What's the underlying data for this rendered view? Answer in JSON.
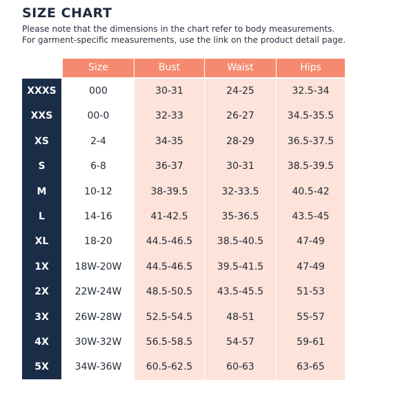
{
  "title": "SIZE CHART",
  "note_line1": "Please note that the dimensions in the chart refer to body measurements.",
  "note_line2": "For garment-specific measurements, use the link on the product detail page.",
  "colors": {
    "header": "#f58a70",
    "side": "#1b2c47",
    "shade": "#fde3da"
  },
  "headers": [
    "Size",
    "Bust",
    "Waist",
    "Hips"
  ],
  "rows": [
    {
      "label": "XXXS",
      "size": "000",
      "bust": "30-31",
      "waist": "24-25",
      "hips": "32.5-34"
    },
    {
      "label": "XXS",
      "size": "00-0",
      "bust": "32-33",
      "waist": "26-27",
      "hips": "34.5-35.5"
    },
    {
      "label": "XS",
      "size": "2-4",
      "bust": "34-35",
      "waist": "28-29",
      "hips": "36.5-37.5"
    },
    {
      "label": "S",
      "size": "6-8",
      "bust": "36-37",
      "waist": "30-31",
      "hips": "38.5-39.5"
    },
    {
      "label": "M",
      "size": "10-12",
      "bust": "38-39.5",
      "waist": "32-33.5",
      "hips": "40.5-42"
    },
    {
      "label": "L",
      "size": "14-16",
      "bust": "41-42.5",
      "waist": "35-36.5",
      "hips": "43.5-45"
    },
    {
      "label": "XL",
      "size": "18-20",
      "bust": "44.5-46.5",
      "waist": "38.5-40.5",
      "hips": "47-49"
    },
    {
      "label": "1X",
      "size": "18W-20W",
      "bust": "44.5-46.5",
      "waist": "39.5-41.5",
      "hips": "47-49"
    },
    {
      "label": "2X",
      "size": "22W-24W",
      "bust": "48.5-50.5",
      "waist": "43.5-45.5",
      "hips": "51-53"
    },
    {
      "label": "3X",
      "size": "26W-28W",
      "bust": "52.5-54.5",
      "waist": "48-51",
      "hips": "55-57"
    },
    {
      "label": "4X",
      "size": "30W-32W",
      "bust": "56.5-58.5",
      "waist": "54-57",
      "hips": "59-61"
    },
    {
      "label": "5X",
      "size": "34W-36W",
      "bust": "60.5-62.5",
      "waist": "60-63",
      "hips": "63-65"
    }
  ]
}
